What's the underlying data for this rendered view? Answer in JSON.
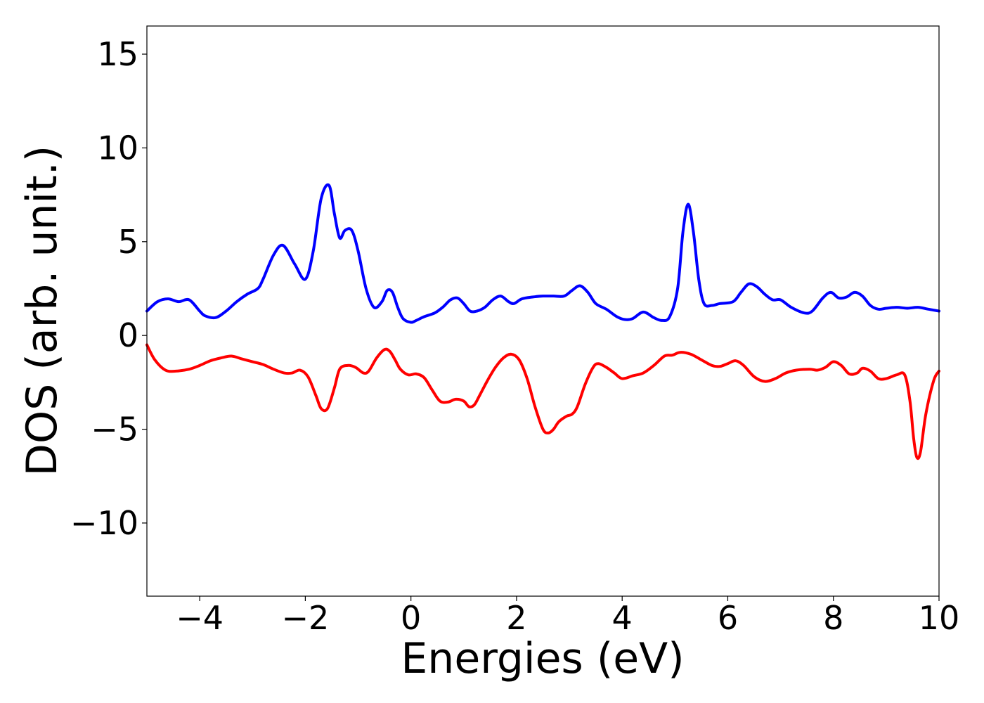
{
  "chart_data": {
    "type": "line",
    "title": "",
    "xlabel": "Energies (eV)",
    "ylabel": "DOS (arb. unit.)",
    "xlim": [
      -5,
      10
    ],
    "ylim": [
      -13.9,
      16.5
    ],
    "grid": false,
    "legend": "none",
    "xticks": [
      -4,
      -2,
      0,
      2,
      4,
      6,
      8,
      10
    ],
    "xtick_labels": [
      "−4",
      "−2",
      "0",
      "2",
      "4",
      "6",
      "8",
      "10"
    ],
    "yticks": [
      -10,
      -5,
      0,
      5,
      10,
      15
    ],
    "ytick_labels": [
      "−10",
      "−5",
      "0",
      "5",
      "10",
      "15"
    ],
    "series": [
      {
        "color": "#0000ff",
        "x": [
          -5.0,
          -4.8,
          -4.6,
          -4.4,
          -4.2,
          -4.0,
          -3.9,
          -3.7,
          -3.5,
          -3.3,
          -3.1,
          -2.9,
          -2.8,
          -2.6,
          -2.42,
          -2.2,
          -2.0,
          -1.85,
          -1.7,
          -1.55,
          -1.45,
          -1.35,
          -1.25,
          -1.12,
          -1.0,
          -0.85,
          -0.7,
          -0.55,
          -0.45,
          -0.35,
          -0.25,
          -0.15,
          0.0,
          0.1,
          0.25,
          0.45,
          0.6,
          0.75,
          0.88,
          1.0,
          1.12,
          1.25,
          1.4,
          1.55,
          1.7,
          1.85,
          1.95,
          2.1,
          2.3,
          2.5,
          2.7,
          2.9,
          3.05,
          3.2,
          3.35,
          3.5,
          3.7,
          3.9,
          4.05,
          4.2,
          4.4,
          4.6,
          4.75,
          4.9,
          5.05,
          5.15,
          5.25,
          5.35,
          5.45,
          5.55,
          5.7,
          5.85,
          6.1,
          6.25,
          6.4,
          6.55,
          6.7,
          6.85,
          7.0,
          7.2,
          7.45,
          7.6,
          7.8,
          7.95,
          8.1,
          8.25,
          8.4,
          8.55,
          8.7,
          8.85,
          9.0,
          9.2,
          9.4,
          9.6,
          9.8,
          10.0
        ],
        "y": [
          1.3,
          1.8,
          1.95,
          1.8,
          1.9,
          1.3,
          1.05,
          0.95,
          1.3,
          1.8,
          2.2,
          2.5,
          3.0,
          4.3,
          4.8,
          3.8,
          3.0,
          4.5,
          7.3,
          8.0,
          6.5,
          5.2,
          5.6,
          5.6,
          4.5,
          2.5,
          1.5,
          1.8,
          2.4,
          2.3,
          1.5,
          0.9,
          0.7,
          0.8,
          1.0,
          1.2,
          1.5,
          1.9,
          2.0,
          1.7,
          1.3,
          1.3,
          1.5,
          1.9,
          2.1,
          1.8,
          1.7,
          1.95,
          2.05,
          2.1,
          2.1,
          2.1,
          2.4,
          2.65,
          2.3,
          1.7,
          1.4,
          1.0,
          0.85,
          0.9,
          1.25,
          0.95,
          0.8,
          1.0,
          2.5,
          5.5,
          7.0,
          5.5,
          3.0,
          1.7,
          1.6,
          1.7,
          1.8,
          2.3,
          2.75,
          2.6,
          2.2,
          1.9,
          1.9,
          1.5,
          1.2,
          1.3,
          2.0,
          2.3,
          2.0,
          2.05,
          2.3,
          2.1,
          1.6,
          1.4,
          1.45,
          1.5,
          1.45,
          1.5,
          1.4,
          1.3
        ]
      },
      {
        "color": "#ff0000",
        "x": [
          -5.0,
          -4.85,
          -4.65,
          -4.45,
          -4.2,
          -4.0,
          -3.8,
          -3.6,
          -3.4,
          -3.2,
          -3.0,
          -2.8,
          -2.6,
          -2.4,
          -2.25,
          -2.1,
          -1.95,
          -1.8,
          -1.7,
          -1.58,
          -1.45,
          -1.35,
          -1.2,
          -1.05,
          -0.9,
          -0.8,
          -0.65,
          -0.5,
          -0.4,
          -0.3,
          -0.2,
          -0.05,
          0.1,
          0.25,
          0.4,
          0.55,
          0.7,
          0.85,
          1.0,
          1.1,
          1.2,
          1.3,
          1.45,
          1.6,
          1.75,
          1.9,
          2.05,
          2.2,
          2.35,
          2.5,
          2.6,
          2.7,
          2.8,
          2.95,
          3.05,
          3.15,
          3.3,
          3.45,
          3.55,
          3.7,
          3.85,
          4.0,
          4.2,
          4.4,
          4.6,
          4.8,
          4.95,
          5.1,
          5.3,
          5.5,
          5.7,
          5.85,
          6.0,
          6.15,
          6.3,
          6.5,
          6.7,
          6.9,
          7.1,
          7.3,
          7.55,
          7.7,
          7.85,
          8.0,
          8.15,
          8.3,
          8.45,
          8.55,
          8.7,
          8.85,
          9.0,
          9.2,
          9.35,
          9.45,
          9.52,
          9.58,
          9.65,
          9.75,
          9.9,
          10.0
        ],
        "y": [
          -0.5,
          -1.3,
          -1.85,
          -1.9,
          -1.8,
          -1.6,
          -1.35,
          -1.2,
          -1.1,
          -1.25,
          -1.4,
          -1.55,
          -1.8,
          -2.0,
          -2.0,
          -1.85,
          -2.2,
          -3.2,
          -3.9,
          -3.9,
          -2.8,
          -1.8,
          -1.6,
          -1.7,
          -2.0,
          -1.9,
          -1.2,
          -0.75,
          -0.85,
          -1.3,
          -1.8,
          -2.1,
          -2.05,
          -2.25,
          -2.9,
          -3.5,
          -3.55,
          -3.4,
          -3.5,
          -3.8,
          -3.7,
          -3.2,
          -2.4,
          -1.7,
          -1.2,
          -1.0,
          -1.3,
          -2.3,
          -3.8,
          -5.0,
          -5.2,
          -5.0,
          -4.6,
          -4.3,
          -4.2,
          -3.8,
          -2.6,
          -1.7,
          -1.5,
          -1.7,
          -2.0,
          -2.3,
          -2.15,
          -2.0,
          -1.6,
          -1.1,
          -1.05,
          -0.9,
          -1.0,
          -1.3,
          -1.6,
          -1.65,
          -1.5,
          -1.35,
          -1.6,
          -2.2,
          -2.45,
          -2.3,
          -2.0,
          -1.85,
          -1.8,
          -1.85,
          -1.7,
          -1.4,
          -1.6,
          -2.05,
          -2.0,
          -1.75,
          -1.9,
          -2.3,
          -2.3,
          -2.1,
          -2.1,
          -3.5,
          -5.5,
          -6.5,
          -6.2,
          -4.2,
          -2.4,
          -1.9
        ]
      }
    ]
  }
}
